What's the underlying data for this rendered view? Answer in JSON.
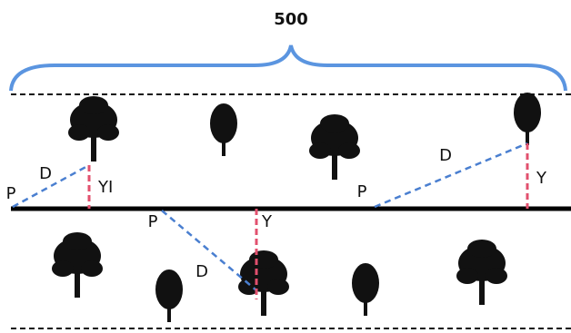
{
  "width_label": "500",
  "measurements": [
    {
      "point": "P",
      "distance": "D",
      "offset": "YI"
    },
    {
      "point": "P",
      "distance": "D",
      "offset": "Y"
    },
    {
      "point": "P",
      "distance": "D",
      "offset": "Y"
    }
  ]
}
